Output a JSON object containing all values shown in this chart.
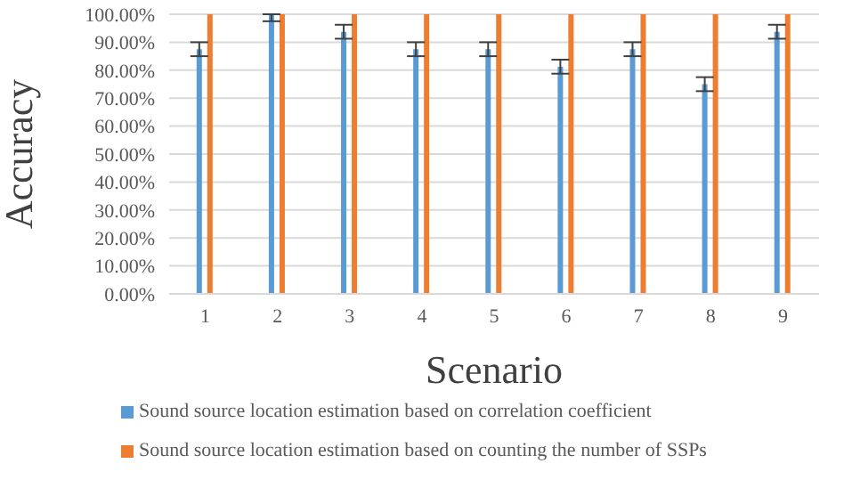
{
  "chart_data": {
    "type": "bar",
    "xlabel": "Scenario",
    "ylabel": "Accuracy",
    "categories": [
      "1",
      "2",
      "3",
      "4",
      "5",
      "6",
      "7",
      "8",
      "9"
    ],
    "series": [
      {
        "name": "Sound source location estimation based on correlation coefficient",
        "color": "#5b9bd5",
        "values": [
          87.5,
          100,
          93.75,
          87.5,
          87.5,
          81.25,
          87.5,
          75,
          93.75
        ],
        "errors": [
          [
            85,
            90
          ],
          [
            97.5,
            100
          ],
          [
            91.25,
            96.25
          ],
          [
            85,
            90
          ],
          [
            85,
            90
          ],
          [
            78.75,
            83.75
          ],
          [
            85,
            90
          ],
          [
            72.5,
            77.5
          ],
          [
            91.25,
            96.25
          ]
        ]
      },
      {
        "name": "Sound source location estimation based on counting the number of SSPs",
        "color": "#ed7d31",
        "values": [
          100,
          100,
          100,
          100,
          100,
          100,
          100,
          100,
          100
        ]
      }
    ],
    "ylim": [
      0,
      100
    ],
    "yticks": [
      {
        "value": 0,
        "label": "0.00%"
      },
      {
        "value": 10,
        "label": "10.00%"
      },
      {
        "value": 20,
        "label": "20.00%"
      },
      {
        "value": 30,
        "label": "30.00%"
      },
      {
        "value": 40,
        "label": "40.00%"
      },
      {
        "value": 50,
        "label": "50.00%"
      },
      {
        "value": 60,
        "label": "60.00%"
      },
      {
        "value": 70,
        "label": "70.00%"
      },
      {
        "value": 80,
        "label": "80.00%"
      },
      {
        "value": 90,
        "label": "90.00%"
      },
      {
        "value": 100,
        "label": "100.00%"
      }
    ],
    "grid": "y",
    "legend": "bottom"
  }
}
